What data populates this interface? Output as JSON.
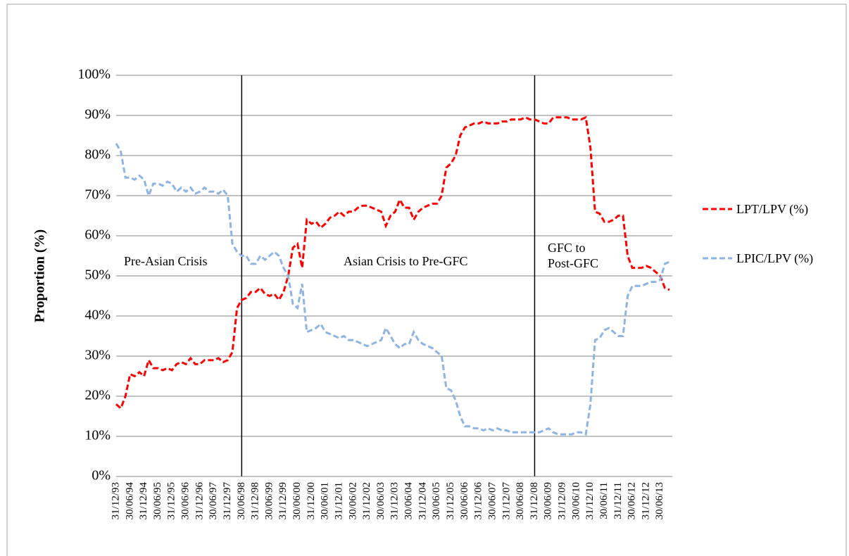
{
  "chart_data": {
    "type": "line",
    "y_label": "Proportion (%)",
    "ylim": [
      0,
      100
    ],
    "yticks": [
      {
        "value": 0,
        "label": "0%"
      },
      {
        "value": 10,
        "label": "10%"
      },
      {
        "value": 20,
        "label": "20%"
      },
      {
        "value": 30,
        "label": "30%"
      },
      {
        "value": 40,
        "label": "40%"
      },
      {
        "value": 50,
        "label": "50%"
      },
      {
        "value": 60,
        "label": "60%"
      },
      {
        "value": 70,
        "label": "70%"
      },
      {
        "value": 80,
        "label": "80%"
      },
      {
        "value": 90,
        "label": "90%"
      },
      {
        "value": 100,
        "label": "100%"
      }
    ],
    "grid": true,
    "legend": "right",
    "vlines": [
      "30/06/98",
      "31/12/08"
    ],
    "annotations": [
      "Pre-Asian Crisis",
      "Asian Crisis to Pre-GFC",
      "GFC to Post-GFC"
    ],
    "categories": [
      "31/12/93",
      null,
      null,
      "30/06/94",
      null,
      null,
      "31/12/94",
      null,
      null,
      "30/06/95",
      null,
      null,
      "31/12/95",
      null,
      null,
      "30/06/96",
      null,
      null,
      "31/12/96",
      null,
      null,
      "30/06/97",
      null,
      null,
      "31/12/97",
      null,
      null,
      "30/06/98",
      null,
      null,
      "31/12/98",
      null,
      null,
      "30/06/99",
      null,
      null,
      "31/12/99",
      null,
      null,
      "30/06/00",
      null,
      null,
      "31/12/00",
      null,
      null,
      "30/06/01",
      null,
      null,
      "31/12/01",
      null,
      null,
      "30/06/02",
      null,
      null,
      "31/12/02",
      null,
      null,
      "30/06/03",
      null,
      null,
      "31/12/03",
      null,
      null,
      "30/06/04",
      null,
      null,
      "31/12/04",
      null,
      null,
      "30/06/05",
      null,
      null,
      "31/12/05",
      null,
      null,
      "30/06/06",
      null,
      null,
      "31/12/06",
      null,
      null,
      "30/06/07",
      null,
      null,
      "31/12/07",
      null,
      null,
      "30/06/08",
      null,
      null,
      "31/12/08",
      null,
      null,
      "30/06/09",
      null,
      null,
      "31/12/09",
      null,
      null,
      "30/06/10",
      null,
      null,
      "31/12/10",
      null,
      null,
      "30/06/11",
      null,
      null,
      "31/12/11",
      null,
      null,
      "30/06/12",
      null,
      null,
      "31/12/12",
      null,
      null,
      "30/06/13",
      null,
      null
    ],
    "series": [
      {
        "name": "LPT/LPV (%)",
        "color": "#ff0000",
        "values": [
          18,
          17,
          20,
          25.5,
          25,
          26,
          25,
          29,
          27,
          27,
          26.5,
          27,
          26.5,
          28,
          28.5,
          28,
          29.5,
          28,
          28,
          29,
          29,
          29,
          29.5,
          28.5,
          29,
          31,
          42,
          44,
          44.5,
          46,
          46,
          47,
          45.5,
          45,
          45.5,
          44,
          46,
          50,
          57,
          58,
          52,
          64,
          63,
          63.5,
          62,
          63,
          64.5,
          65,
          66,
          65,
          66,
          66,
          67,
          67.5,
          67.5,
          67,
          66.5,
          66,
          62.5,
          65,
          66,
          69,
          67,
          67,
          64,
          66,
          67,
          67.5,
          68,
          68,
          70,
          77,
          78,
          80,
          85,
          87,
          87.5,
          88,
          88,
          88.5,
          88,
          88,
          88,
          88.5,
          88.5,
          89,
          89,
          89,
          89.5,
          89,
          89,
          88.5,
          88,
          88,
          89.5,
          89.5,
          89.5,
          89.5,
          89,
          89,
          89,
          89.5,
          82,
          66,
          65.5,
          63.5,
          63.5,
          64,
          65,
          65,
          55,
          52,
          52,
          52,
          52.5,
          52,
          51,
          50,
          47,
          46.5
        ]
      },
      {
        "name": "LPIC/LPV (%)",
        "color": "#8eb4e3",
        "values": [
          83,
          81,
          74.5,
          74.5,
          74,
          75,
          74,
          70,
          73,
          73,
          72.5,
          73.5,
          73,
          71,
          72,
          71,
          72,
          70.5,
          71,
          72,
          71,
          71,
          70.5,
          71.5,
          70,
          58,
          56,
          55,
          55,
          53,
          53,
          55,
          54,
          55,
          56,
          55,
          52,
          50,
          43,
          42,
          48,
          36,
          36.5,
          37,
          38,
          36,
          35.5,
          35,
          34.5,
          35,
          34,
          34,
          33.5,
          33,
          32.5,
          33,
          33.5,
          34,
          37,
          35,
          33,
          32,
          33,
          33,
          36,
          34,
          33,
          32.5,
          32,
          31,
          30,
          22,
          21.5,
          19,
          15,
          12.5,
          12.5,
          12,
          12,
          11.5,
          12,
          11.5,
          12,
          11.5,
          11.5,
          11,
          11,
          11,
          11,
          11,
          11,
          11,
          11.5,
          12,
          11,
          10.5,
          10.5,
          10.5,
          10.5,
          11,
          11,
          10.5,
          18,
          34,
          34.5,
          36.5,
          37,
          36,
          35,
          35,
          45,
          47.5,
          47.5,
          47.5,
          48,
          48.5,
          48.5,
          49,
          53,
          53.5
        ]
      }
    ]
  }
}
